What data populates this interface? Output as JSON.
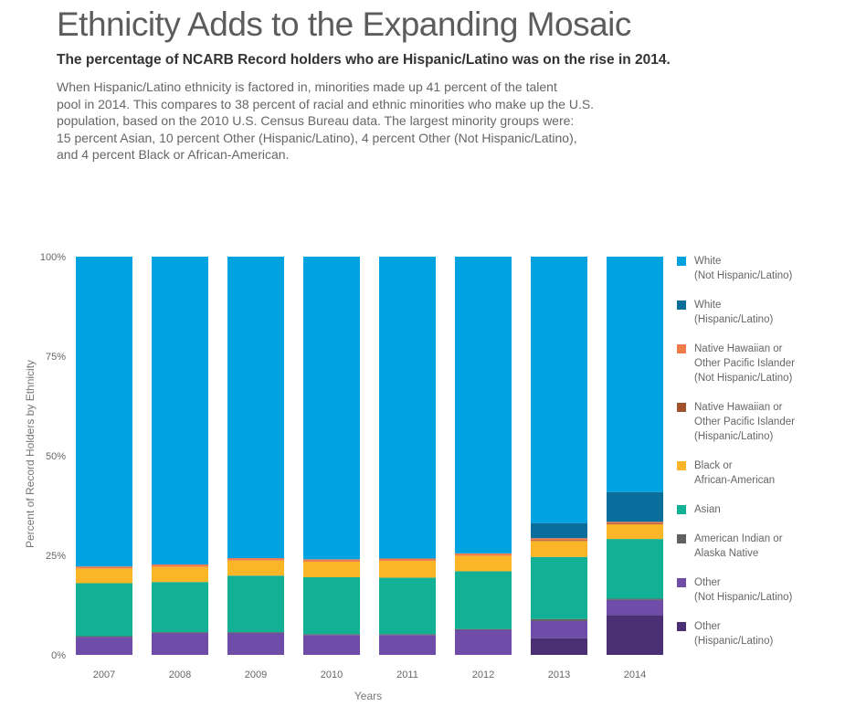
{
  "header": {
    "title": "Ethnicity Adds to the Expanding Mosaic",
    "subtitle": "The percentage of NCARB Record holders who are Hispanic/Latino was on the rise in 2014.",
    "body_lines": [
      "When Hispanic/Latino ethnicity is factored in, minorities made up 41 percent of the talent",
      "pool in 2014. This compares to 38 percent of racial and ethnic minorities who make up the U.S.",
      "population, based on the 2010 U.S. Census Bureau data. The largest minority groups were:",
      "15 percent Asian, 10 percent Other (Hispanic/Latino), 4 percent Other (Not Hispanic/Latino),",
      "and 4 percent Black or African-American."
    ]
  },
  "chart_data": {
    "type": "bar",
    "stacked": true,
    "categories": [
      "2007",
      "2008",
      "2009",
      "2010",
      "2011",
      "2012",
      "2013",
      "2014"
    ],
    "xlabel": "Years",
    "ylabel": "Percent of Record Holders by Ethnicity",
    "ylim": [
      0,
      100
    ],
    "yticks": [
      "0%",
      "25%",
      "50%",
      "75%",
      "100%"
    ],
    "grid": false,
    "legend_position": "right",
    "series": [
      {
        "name": "Other\n(Hispanic/Latino)",
        "color": "#4a2f74",
        "values": [
          0,
          0,
          0,
          0,
          0,
          0,
          4.2,
          10.0
        ]
      },
      {
        "name": "Other\n(Not Hispanic/Latino)",
        "color": "#6f4ca7",
        "values": [
          4.5,
          5.5,
          5.5,
          5.0,
          5.0,
          6.3,
          4.3,
          3.8
        ]
      },
      {
        "name": "American Indian or\nAlaska Native",
        "color": "#606060",
        "values": [
          0.2,
          0.2,
          0.2,
          0.2,
          0.2,
          0.2,
          0.5,
          0.3
        ]
      },
      {
        "name": "Asian",
        "color": "#12b094",
        "values": [
          13.3,
          12.6,
          14.2,
          14.3,
          14.2,
          14.5,
          15.6,
          15.0
        ]
      },
      {
        "name": "Black or\nAfrican-American",
        "color": "#fbb628",
        "values": [
          3.7,
          3.8,
          3.8,
          3.9,
          4.2,
          3.9,
          4.0,
          3.7
        ]
      },
      {
        "name": "Native Hawaiian or\nOther Pacific Islander\n(Hispanic/Latino)",
        "color": "#a0522d",
        "values": [
          0,
          0,
          0,
          0,
          0,
          0,
          0.2,
          0.2
        ]
      },
      {
        "name": "Native Hawaiian or\nOther Pacific Islander\n(Not Hispanic/Latino)",
        "color": "#f07b4b",
        "values": [
          0.5,
          0.6,
          0.6,
          0.6,
          0.6,
          0.6,
          0.5,
          0.4
        ]
      },
      {
        "name": "White\n(Hispanic/Latino)",
        "color": "#0a6e9c",
        "values": [
          0,
          0,
          0,
          0,
          0,
          0,
          3.8,
          7.5
        ]
      },
      {
        "name": "White\n(Not Hispanic/Latino)",
        "color": "#00a3e0",
        "values": [
          77.8,
          77.3,
          75.7,
          76.0,
          75.8,
          74.5,
          66.9,
          59.1
        ]
      }
    ]
  },
  "legend_order": [
    8,
    7,
    6,
    5,
    4,
    3,
    2,
    1,
    0
  ]
}
